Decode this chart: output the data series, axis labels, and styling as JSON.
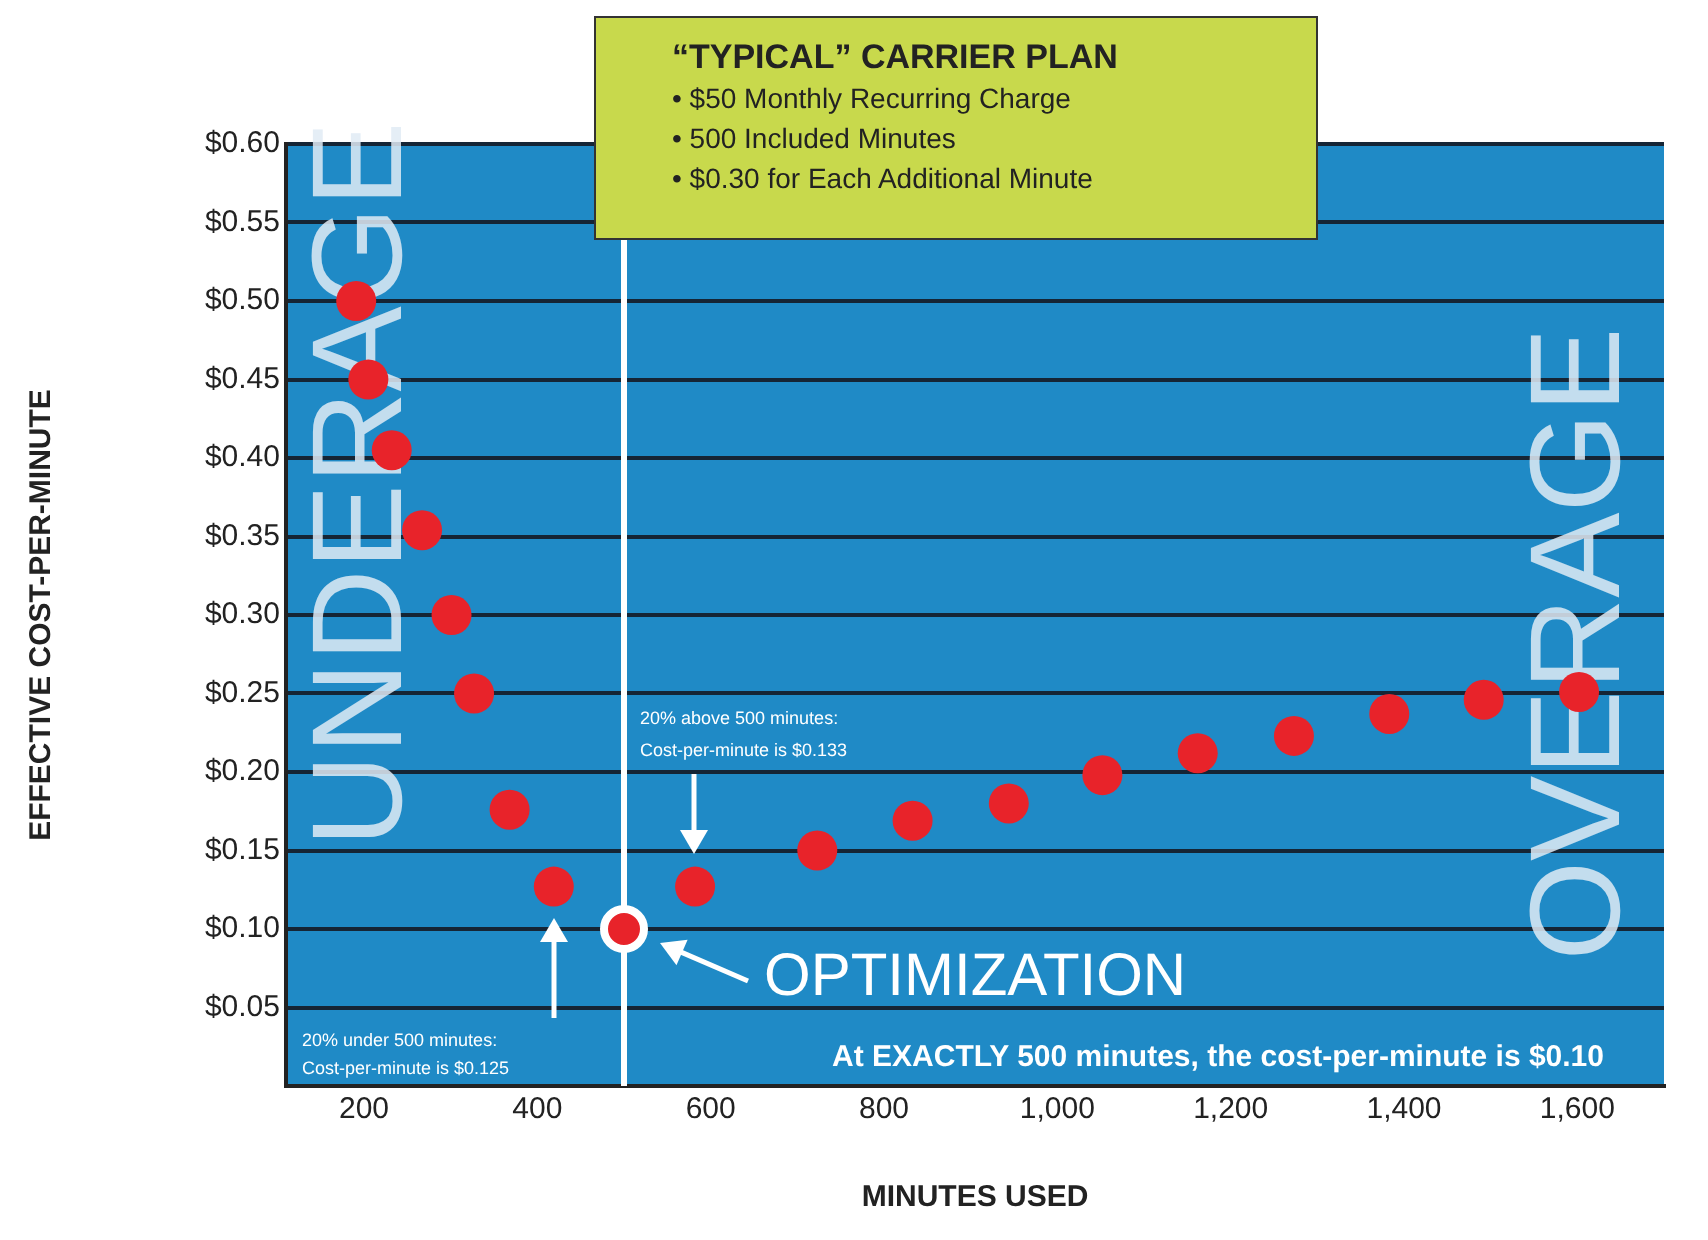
{
  "chart_data": {
    "type": "scatter",
    "title": "“TYPICAL” CARRIER PLAN",
    "xlabel": "MINUTES USED",
    "ylabel": "EFFECTIVE COST-PER-MINUTE",
    "x": [
      191,
      205,
      232,
      267,
      301,
      327,
      368,
      419,
      500,
      582,
      723,
      833,
      944,
      1052,
      1162,
      1273,
      1383,
      1492,
      1602
    ],
    "series": [
      {
        "color": "#e8232a",
        "values": [
          0.5,
          0.45,
          0.405,
          0.354,
          0.3,
          0.25,
          0.176,
          0.127,
          0.1,
          0.127,
          0.15,
          0.169,
          0.18,
          0.198,
          0.212,
          0.223,
          0.237,
          0.246,
          0.251
        ]
      }
    ],
    "marker": "circle",
    "grid": "y",
    "legend": false,
    "xlim": [
      110,
      1700
    ],
    "xticks": [
      200,
      400,
      600,
      800,
      {
        "value": 1000,
        "label": "1,000"
      },
      {
        "value": 1200,
        "label": "1,200"
      },
      {
        "value": 1400,
        "label": "1,400"
      },
      {
        "value": 1600,
        "label": "1,600"
      }
    ],
    "ylim": [
      0,
      0.6
    ],
    "yticks": [
      {
        "value": 0.05,
        "label": "$0.05"
      },
      {
        "value": 0.1,
        "label": "$0.10"
      },
      {
        "value": 0.15,
        "label": "$0.15"
      },
      {
        "value": 0.2,
        "label": "$0.20"
      },
      {
        "value": 0.25,
        "label": "$0.25"
      },
      {
        "value": 0.3,
        "label": "$0.30"
      },
      {
        "value": 0.35,
        "label": "$0.35"
      },
      {
        "value": 0.4,
        "label": "$0.40"
      },
      {
        "value": 0.45,
        "label": "$0.45"
      },
      {
        "value": 0.5,
        "label": "$0.50"
      },
      {
        "value": 0.55,
        "label": "$0.55"
      },
      {
        "value": 0.6,
        "label": "$0.60"
      }
    ],
    "ref_lines": [
      {
        "axis": "x",
        "value": 500,
        "color": "#ffffff"
      }
    ],
    "annotations": [
      "• $50 Monthly Recurring Charge",
      "• 500 Included Minutes",
      "• $0.30 for Each Additional Minute",
      "UNDERAGE",
      "OVERAGE",
      {
        "text": "OPTIMIZATION",
        "x": 500,
        "y": 0.1
      },
      "20% under 500 minutes:\nCost-per-minute is $0.125",
      "20% above 500 minutes:\nCost-per-minute is $0.133",
      "At EXACTLY 500 minutes, the cost-per-minute is $0.10"
    ]
  }
}
